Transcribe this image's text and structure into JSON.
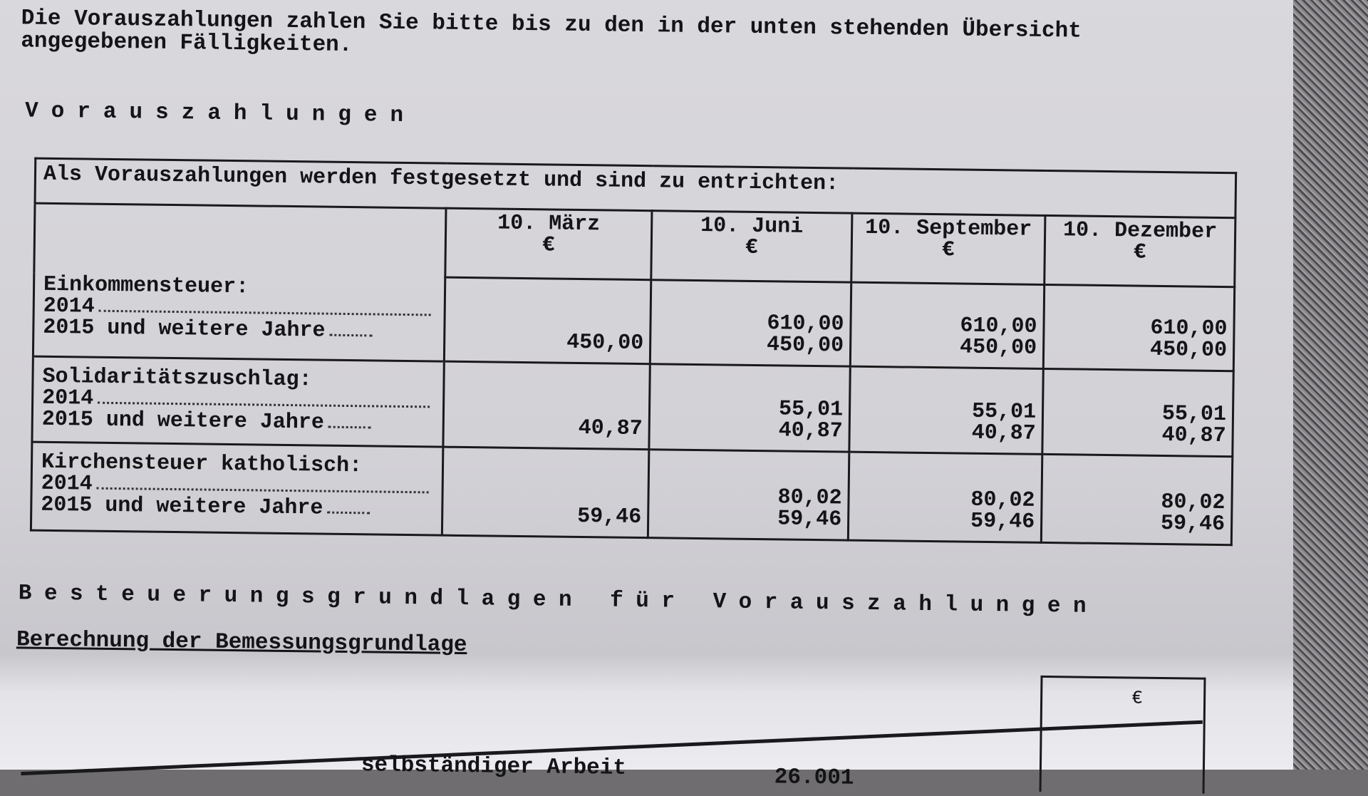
{
  "intro": {
    "line1": "Die Vorauszahlungen zahlen Sie bitte bis zu den in der unten stehenden Übersicht",
    "line2": "angegebenen Fälligkeiten."
  },
  "section1_heading": "Vorauszahlungen",
  "table": {
    "caption": "Als Vorauszahlungen werden festgesetzt und sind zu entrichten:",
    "columns": [
      {
        "date": "10. März",
        "currency": "€"
      },
      {
        "date": "10. Juni",
        "currency": "€"
      },
      {
        "date": "10. September",
        "currency": "€"
      },
      {
        "date": "10. Dezember",
        "currency": "€"
      }
    ],
    "rows": [
      {
        "title": "Einkommensteuer:",
        "year1": "2014",
        "year2": "2015 und weitere Jahre",
        "cells": [
          {
            "a": "",
            "b": "450,00"
          },
          {
            "a": "610,00",
            "b": "450,00"
          },
          {
            "a": "610,00",
            "b": "450,00"
          },
          {
            "a": "610,00",
            "b": "450,00"
          }
        ]
      },
      {
        "title": "Solidaritätszuschlag:",
        "year1": "2014",
        "year2": "2015 und weitere Jahre",
        "cells": [
          {
            "a": "",
            "b": "40,87"
          },
          {
            "a": "55,01",
            "b": "40,87"
          },
          {
            "a": "55,01",
            "b": "40,87"
          },
          {
            "a": "55,01",
            "b": "40,87"
          }
        ]
      },
      {
        "title": "Kirchensteuer katholisch:",
        "year1": "2014",
        "year2": "2015 und weitere Jahre",
        "cells": [
          {
            "a": "",
            "b": "59,46"
          },
          {
            "a": "80,02",
            "b": "59,46"
          },
          {
            "a": "80,02",
            "b": "59,46"
          },
          {
            "a": "80,02",
            "b": "59,46"
          }
        ]
      }
    ]
  },
  "section2_heading": "Besteuerungsgrundlagen für Vorauszahlungen",
  "subheading": "Berechnung der Bemessungsgrundlage",
  "bottom_box_currency": "€",
  "partial_row": {
    "label": "selbständiger Arbeit",
    "value": "26.001"
  }
}
